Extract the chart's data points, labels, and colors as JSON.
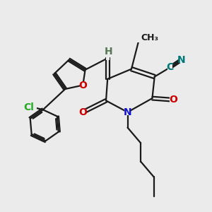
{
  "bg_color": "#ebebeb",
  "bond_color": "#1a1a1a",
  "bond_width": 1.6,
  "atom_colors": {
    "O": "#cc0000",
    "N": "#1111cc",
    "Cl": "#22aa22",
    "C_cyan": "#007777",
    "H": "#557755"
  },
  "font_size_atom": 10,
  "font_size_small": 9
}
